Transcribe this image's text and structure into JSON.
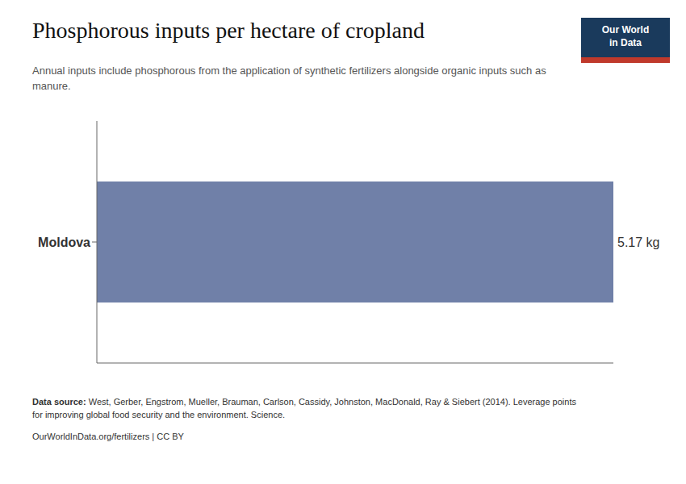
{
  "chart_data": {
    "type": "bar",
    "title": "Phosphorous inputs per hectare of cropland",
    "subtitle": "Annual inputs include phosphorous from the application of synthetic fertilizers alongside organic inputs such as\nmanure.",
    "categories": [
      "Moldova"
    ],
    "values": [
      5.17
    ],
    "value_labels": [
      "5.17 kg"
    ],
    "color": "#7080a8",
    "orientation": "horizontal",
    "xlim": [
      0,
      5.17
    ],
    "data_labels": true,
    "tick_labels": "y",
    "grid": false,
    "annotations": [
      "Data source:",
      " West, Gerber, Engstrom, Mueller, Brauman, Carlson, Cassidy, Johnston, MacDonald, Ray & Siebert (2014). Leverage points\nfor improving global food security and the environment. Science.",
      "OurWorldInData.org/fertilizers | CC BY",
      "Our World",
      "in Data"
    ]
  }
}
